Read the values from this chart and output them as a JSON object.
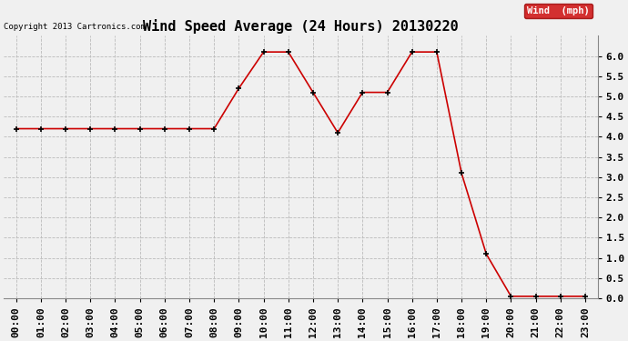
{
  "title": "Wind Speed Average (24 Hours) 20130220",
  "copyright": "Copyright 2013 Cartronics.com",
  "legend_label": "Wind  (mph)",
  "x_labels": [
    "00:00",
    "01:00",
    "02:00",
    "03:00",
    "04:00",
    "05:00",
    "06:00",
    "07:00",
    "08:00",
    "09:00",
    "10:00",
    "11:00",
    "12:00",
    "13:00",
    "14:00",
    "15:00",
    "16:00",
    "17:00",
    "18:00",
    "19:00",
    "20:00",
    "21:00",
    "22:00",
    "23:00"
  ],
  "y_values": [
    4.2,
    4.2,
    4.2,
    4.2,
    4.2,
    4.2,
    4.2,
    4.2,
    4.2,
    5.2,
    6.1,
    6.1,
    5.1,
    4.1,
    5.1,
    5.1,
    6.1,
    6.1,
    3.1,
    1.1,
    0.05,
    0.05,
    0.05,
    0.05
  ],
  "line_color": "#cc0000",
  "marker_color": "#000000",
  "background_color": "#f0f0f0",
  "grid_color": "#bbbbbb",
  "ylim": [
    0.0,
    6.5
  ],
  "yticks": [
    0.0,
    0.5,
    1.0,
    1.5,
    2.0,
    2.5,
    3.0,
    3.5,
    4.0,
    4.5,
    5.0,
    5.5,
    6.0
  ],
  "title_fontsize": 11,
  "copyright_fontsize": 6.5,
  "tick_fontsize": 8,
  "legend_bg": "#cc0000",
  "legend_text_color": "#ffffff",
  "legend_fontsize": 7.5
}
